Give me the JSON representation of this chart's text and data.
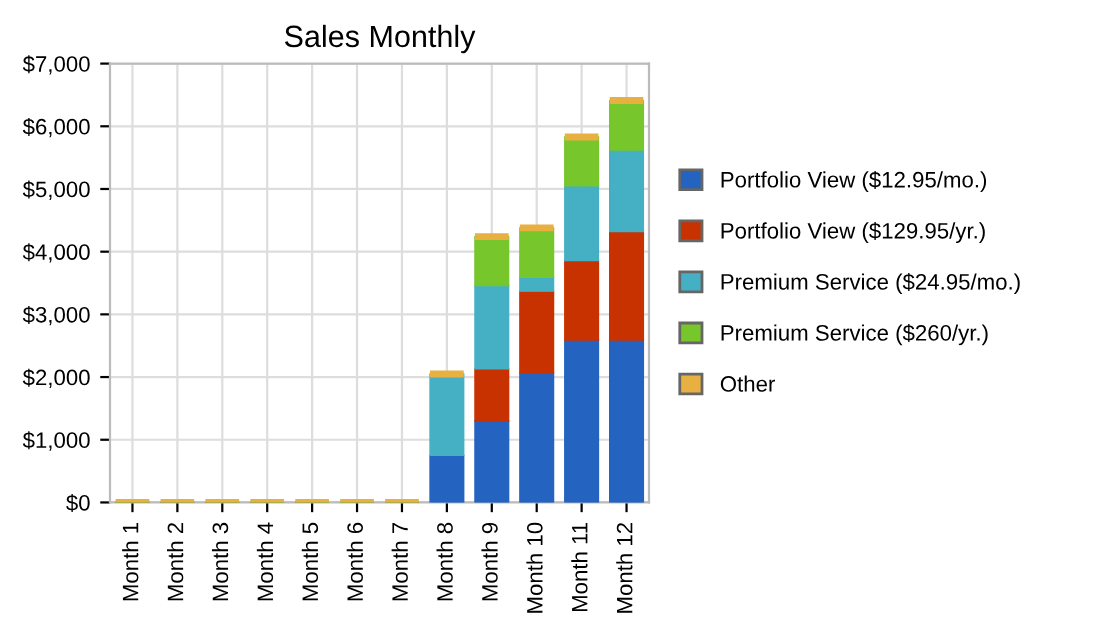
{
  "chart_data": {
    "type": "bar",
    "title": "Sales Monthly",
    "stacked": true,
    "categories": [
      "Month 1",
      "Month 2",
      "Month 3",
      "Month 4",
      "Month 5",
      "Month 6",
      "Month 7",
      "Month 8",
      "Month 9",
      "Month 10",
      "Month 11",
      "Month 12"
    ],
    "series": [
      {
        "name": "Portfolio View ($12.95/mo.)",
        "color": "#2563c0",
        "values": [
          0,
          0,
          0,
          0,
          0,
          0,
          0,
          750,
          1300,
          2070,
          2590,
          2590
        ]
      },
      {
        "name": "Portfolio View ($129.95/yr.)",
        "color": "#c83200",
        "values": [
          0,
          0,
          0,
          0,
          0,
          0,
          0,
          0,
          830,
          1300,
          1270,
          1730
        ]
      },
      {
        "name": "Premium Service ($24.95/mo.)",
        "color": "#45b0c4",
        "values": [
          0,
          0,
          0,
          0,
          0,
          0,
          0,
          1300,
          1330,
          220,
          1190,
          1300
        ]
      },
      {
        "name": "Premium Service ($260/yr.)",
        "color": "#76c62c",
        "values": [
          0,
          0,
          0,
          0,
          0,
          0,
          0,
          0,
          780,
          790,
          780,
          790
        ]
      },
      {
        "name": "Other",
        "color": "#e8b040",
        "values": [
          0,
          0,
          0,
          0,
          0,
          0,
          0,
          0,
          0,
          0,
          0,
          0
        ]
      }
    ],
    "ylim": [
      0,
      7000
    ],
    "yticks": [
      {
        "value": 0,
        "label": "$0"
      },
      {
        "value": 1000,
        "label": "$1,000"
      },
      {
        "value": 2000,
        "label": "$2,000"
      },
      {
        "value": 3000,
        "label": "$3,000"
      },
      {
        "value": 4000,
        "label": "$4,000"
      },
      {
        "value": 5000,
        "label": "$5,000"
      },
      {
        "value": 6000,
        "label": "$6,000"
      },
      {
        "value": 7000,
        "label": "$7,000"
      }
    ],
    "grid": true,
    "legend": "right"
  }
}
